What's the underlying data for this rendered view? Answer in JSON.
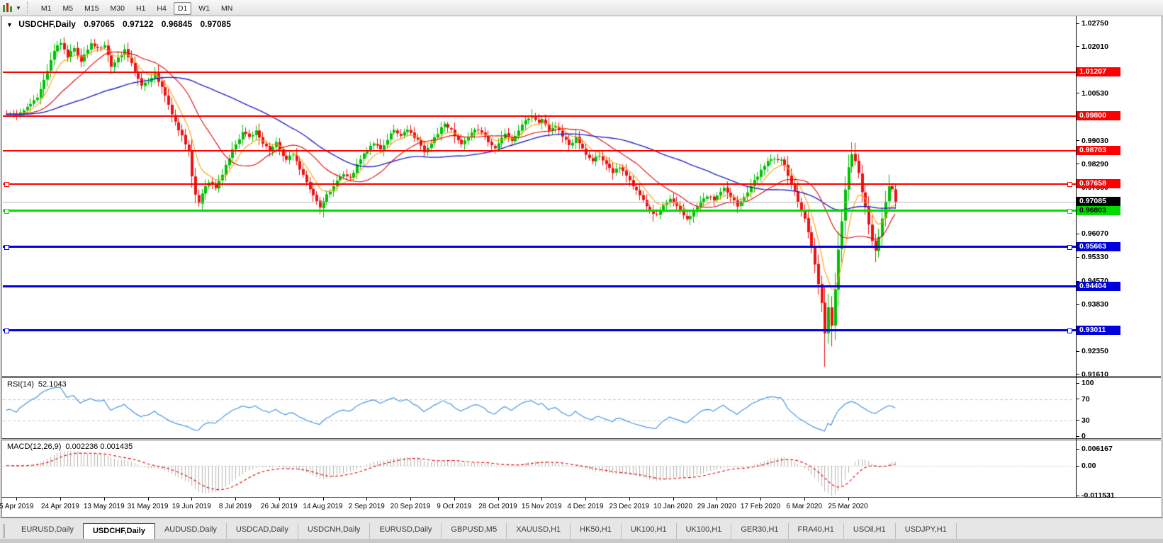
{
  "toolbar": {
    "timeframes": [
      "M1",
      "M5",
      "M15",
      "M30",
      "H1",
      "H4",
      "D1",
      "W1",
      "MN"
    ],
    "active": "D1",
    "chart_tools_icon": "chart-bars",
    "dropdown_arrow": "▼"
  },
  "main_chart": {
    "title": {
      "collapse_arrow": "▼",
      "symbol": "USDCHF,Daily",
      "open": "0.97065",
      "high": "0.97122",
      "low": "0.96845",
      "close": "0.97085"
    },
    "price_axis": {
      "ticks": [
        {
          "label": "1.02750",
          "value": 1.0275
        },
        {
          "label": "1.02010",
          "value": 1.0201
        },
        {
          "label": "1.00530",
          "value": 1.0053
        },
        {
          "label": "0.99030",
          "value": 0.9903
        },
        {
          "label": "0.98290",
          "value": 0.9829
        },
        {
          "label": "0.97550",
          "value": 0.9755
        },
        {
          "label": "0.96070",
          "value": 0.9607
        },
        {
          "label": "0.95330",
          "value": 0.9533
        },
        {
          "label": "0.94570",
          "value": 0.9457
        },
        {
          "label": "0.93830",
          "value": 0.9383
        },
        {
          "label": "0.92350",
          "value": 0.9235
        },
        {
          "label": "0.91610",
          "value": 0.9161
        }
      ]
    },
    "levels": [
      {
        "label": "1.01207",
        "value": 1.01207,
        "color": "#ff0000",
        "thickness": 2,
        "badge_fg": "#ffffff",
        "handles": false
      },
      {
        "label": "0.99800",
        "value": 0.998,
        "color": "#ff0000",
        "thickness": 2,
        "badge_fg": "#ffffff",
        "handles": false
      },
      {
        "label": "0.98703",
        "value": 0.98703,
        "color": "#ff0000",
        "thickness": 2,
        "badge_fg": "#ffffff",
        "handles": false
      },
      {
        "label": "0.97658",
        "value": 0.97658,
        "color": "#ff0000",
        "thickness": 2,
        "badge_fg": "#ffffff",
        "handles": true
      },
      {
        "label": "0.96803",
        "value": 0.96803,
        "color": "#00dc00",
        "thickness": 3,
        "badge_fg": "#000000",
        "handles": true
      },
      {
        "label": "0.95663",
        "value": 0.95663,
        "color": "#0000dc",
        "thickness": 3,
        "badge_fg": "#ffffff",
        "handles": true
      },
      {
        "label": "0.94404",
        "value": 0.94404,
        "color": "#0000dc",
        "thickness": 3,
        "badge_fg": "#ffffff",
        "handles": false
      },
      {
        "label": "0.93011",
        "value": 0.93011,
        "color": "#0000dc",
        "thickness": 3,
        "badge_fg": "#ffffff",
        "handles": true
      }
    ],
    "current_price": {
      "label": "0.97085",
      "value": 0.97085,
      "line_color": "#b4b4b4",
      "badge_bg": "#000000",
      "badge_fg": "#ffffff"
    }
  },
  "rsi_panel": {
    "label": "RSI(14)",
    "value": "52.1043",
    "upper_level": 70,
    "lower_level": 30,
    "axis_ticks": [
      {
        "label": "100",
        "value": 100
      },
      {
        "label": "70",
        "value": 70
      },
      {
        "label": "30",
        "value": 30
      },
      {
        "label": "0",
        "value": 0
      }
    ]
  },
  "macd_panel": {
    "label": "MACD(12,26,9)",
    "macd_value": "0.002236",
    "signal_value": "0.001435",
    "axis_ticks": [
      {
        "label": "0.006167",
        "value": 0.006167
      },
      {
        "label": "0.00",
        "value": 0
      },
      {
        "label": "-0.011531",
        "value": -0.011531
      }
    ]
  },
  "date_axis": {
    "labels": [
      "5 Apr 2019",
      "24 Apr 2019",
      "13 May 2019",
      "31 May 2019",
      "19 Jun 2019",
      "8 Jul 2019",
      "26 Jul 2019",
      "14 Aug 2019",
      "2 Sep 2019",
      "20 Sep 2019",
      "9 Oct 2019",
      "28 Oct 2019",
      "15 Nov 2019",
      "4 Dec 2019",
      "23 Dec 2019",
      "10 Jan 2020",
      "29 Jan 2020",
      "17 Feb 2020",
      "6 Mar 2020",
      "25 Mar 2020"
    ]
  },
  "tabs": {
    "items": [
      "EURUSD,Daily",
      "USDCHF,Daily",
      "AUDUSD,Daily",
      "USDCAD,Daily",
      "USDCNH,Daily",
      "EURUSD,Daily",
      "GBPUSD,M5",
      "XAUUSD,H1",
      "HK50,H1",
      "UK100,H1",
      "UK100,H1",
      "GER30,H1",
      "FRA40,H1",
      "USOil,H1",
      "USDJPY,H1"
    ],
    "active_index": 1,
    "scroll_left_icon": "◄",
    "scroll_right_icon": "►"
  },
  "colors": {
    "candle_up": "#00c000",
    "candle_down": "#ee1111",
    "ma_fast": "#ffa000",
    "ma_mid": "#e00000",
    "ma_slow": "#2222cc",
    "rsi_line": "#4a96e0",
    "rsi_levels": "#c8c8c8",
    "macd_hist": "#b4b4b4",
    "macd_signal": "#e00000"
  },
  "chart_data": {
    "type": "candlestick",
    "symbol": "USDCHF",
    "period": "Daily",
    "bars": 265,
    "bars_per_date_label": 13,
    "first_label_bar": 3,
    "visible_price_top": 1.0275,
    "visible_price_bottom": 0.9161,
    "rsi_range": [
      0,
      100
    ],
    "macd_range": [
      -0.011531,
      0.006167
    ],
    "moving_averages": [
      {
        "name": "fast",
        "period": 8
      },
      {
        "name": "mid",
        "period": 20
      },
      {
        "name": "slow",
        "period": 55
      }
    ],
    "anchors": [
      [
        0,
        0.999
      ],
      [
        3,
        0.9982
      ],
      [
        6,
        1.0008
      ],
      [
        9,
        1.0042
      ],
      [
        12,
        1.012
      ],
      [
        14,
        1.019
      ],
      [
        16,
        1.0215
      ],
      [
        18,
        1.0168
      ],
      [
        20,
        1.0198
      ],
      [
        22,
        1.0155
      ],
      [
        25,
        1.021
      ],
      [
        27,
        1.0195
      ],
      [
        29,
        1.0205
      ],
      [
        31,
        1.014
      ],
      [
        33,
        1.0168
      ],
      [
        35,
        1.019
      ],
      [
        38,
        1.0125
      ],
      [
        40,
        1.008
      ],
      [
        42,
        1.0092
      ],
      [
        44,
        1.0115
      ],
      [
        46,
        1.007
      ],
      [
        48,
        1.0018
      ],
      [
        50,
        0.996
      ],
      [
        52,
        0.992
      ],
      [
        54,
        0.9865
      ],
      [
        55,
        0.979
      ],
      [
        56,
        0.973
      ],
      [
        57,
        0.97
      ],
      [
        58,
        0.9738
      ],
      [
        60,
        0.9772
      ],
      [
        62,
        0.9748
      ],
      [
        64,
        0.9795
      ],
      [
        66,
        0.985
      ],
      [
        68,
        0.9892
      ],
      [
        70,
        0.993
      ],
      [
        72,
        0.9912
      ],
      [
        74,
        0.9938
      ],
      [
        76,
        0.9895
      ],
      [
        78,
        0.9868
      ],
      [
        80,
        0.9898
      ],
      [
        81,
        0.9872
      ],
      [
        83,
        0.984
      ],
      [
        85,
        0.9862
      ],
      [
        87,
        0.9815
      ],
      [
        89,
        0.9768
      ],
      [
        91,
        0.973
      ],
      [
        93,
        0.9692
      ],
      [
        94,
        0.9712
      ],
      [
        96,
        0.9745
      ],
      [
        98,
        0.9778
      ],
      [
        100,
        0.98
      ],
      [
        102,
        0.9782
      ],
      [
        104,
        0.9825
      ],
      [
        106,
        0.9858
      ],
      [
        107,
        0.9868
      ],
      [
        109,
        0.9898
      ],
      [
        111,
        0.9875
      ],
      [
        113,
        0.9908
      ],
      [
        115,
        0.9938
      ],
      [
        117,
        0.9915
      ],
      [
        119,
        0.9942
      ],
      [
        120,
        0.9928
      ],
      [
        122,
        0.9902
      ],
      [
        124,
        0.9868
      ],
      [
        126,
        0.9895
      ],
      [
        128,
        0.9928
      ],
      [
        130,
        0.9955
      ],
      [
        132,
        0.9938
      ],
      [
        133,
        0.9918
      ],
      [
        135,
        0.989
      ],
      [
        137,
        0.9912
      ],
      [
        139,
        0.9942
      ],
      [
        141,
        0.9928
      ],
      [
        143,
        0.9902
      ],
      [
        145,
        0.9878
      ],
      [
        146,
        0.9898
      ],
      [
        148,
        0.9922
      ],
      [
        150,
        0.9905
      ],
      [
        152,
        0.9938
      ],
      [
        154,
        0.9965
      ],
      [
        156,
        0.998
      ],
      [
        158,
        0.9958
      ],
      [
        159,
        0.9968
      ],
      [
        161,
        0.9935
      ],
      [
        163,
        0.9952
      ],
      [
        165,
        0.9918
      ],
      [
        167,
        0.9888
      ],
      [
        169,
        0.9912
      ],
      [
        171,
        0.9878
      ],
      [
        172,
        0.9858
      ],
      [
        174,
        0.9838
      ],
      [
        176,
        0.9858
      ],
      [
        178,
        0.9825
      ],
      [
        180,
        0.9802
      ],
      [
        182,
        0.9818
      ],
      [
        184,
        0.9788
      ],
      [
        185,
        0.9775
      ],
      [
        187,
        0.9742
      ],
      [
        189,
        0.9712
      ],
      [
        191,
        0.9682
      ],
      [
        193,
        0.9668
      ],
      [
        195,
        0.97
      ],
      [
        197,
        0.9718
      ],
      [
        198,
        0.9708
      ],
      [
        200,
        0.9682
      ],
      [
        202,
        0.9658
      ],
      [
        204,
        0.9675
      ],
      [
        206,
        0.9705
      ],
      [
        208,
        0.9728
      ],
      [
        210,
        0.9715
      ],
      [
        211,
        0.9732
      ],
      [
        213,
        0.9755
      ],
      [
        215,
        0.9728
      ],
      [
        217,
        0.9698
      ],
      [
        219,
        0.9725
      ],
      [
        221,
        0.9758
      ],
      [
        223,
        0.9792
      ],
      [
        224,
        0.9815
      ],
      [
        226,
        0.9835
      ],
      [
        228,
        0.9845
      ],
      [
        230,
        0.984
      ],
      [
        231,
        0.9822
      ],
      [
        232,
        0.9795
      ],
      [
        233,
        0.9768
      ],
      [
        234,
        0.9742
      ],
      [
        235,
        0.9712
      ],
      [
        236,
        0.9682
      ],
      [
        237,
        0.9655
      ],
      [
        238,
        0.9615
      ],
      [
        239,
        0.957
      ],
      [
        240,
        0.951
      ],
      [
        241,
        0.9448
      ],
      [
        242,
        0.939
      ],
      [
        243,
        0.9295
      ],
      [
        244,
        0.937
      ],
      [
        245,
        0.932
      ],
      [
        246,
        0.943
      ],
      [
        247,
        0.9555
      ],
      [
        248,
        0.965
      ],
      [
        249,
        0.975
      ],
      [
        250,
        0.982
      ],
      [
        251,
        0.9858
      ],
      [
        252,
        0.984
      ],
      [
        253,
        0.9798
      ],
      [
        254,
        0.974
      ],
      [
        255,
        0.9688
      ],
      [
        256,
        0.964
      ],
      [
        257,
        0.9585
      ],
      [
        258,
        0.955
      ],
      [
        259,
        0.9598
      ],
      [
        260,
        0.9655
      ],
      [
        261,
        0.9712
      ],
      [
        262,
        0.9762
      ],
      [
        263,
        0.9748
      ],
      [
        264,
        0.9708
      ]
    ],
    "wick_overrides": [
      {
        "bar": 16,
        "high": 1.0226
      },
      {
        "bar": 57,
        "low": 0.9693
      },
      {
        "bar": 94,
        "low": 0.9659
      },
      {
        "bar": 156,
        "high": 1.0003
      },
      {
        "bar": 192,
        "low": 0.9646
      },
      {
        "bar": 202,
        "low": 0.9647
      },
      {
        "bar": 243,
        "low": 0.9185
      },
      {
        "bar": 245,
        "low": 0.925
      },
      {
        "bar": 251,
        "high": 0.9898
      },
      {
        "bar": 252,
        "high": 0.9896
      },
      {
        "bar": 258,
        "low": 0.9518
      },
      {
        "bar": 262,
        "high": 0.9795
      }
    ]
  }
}
